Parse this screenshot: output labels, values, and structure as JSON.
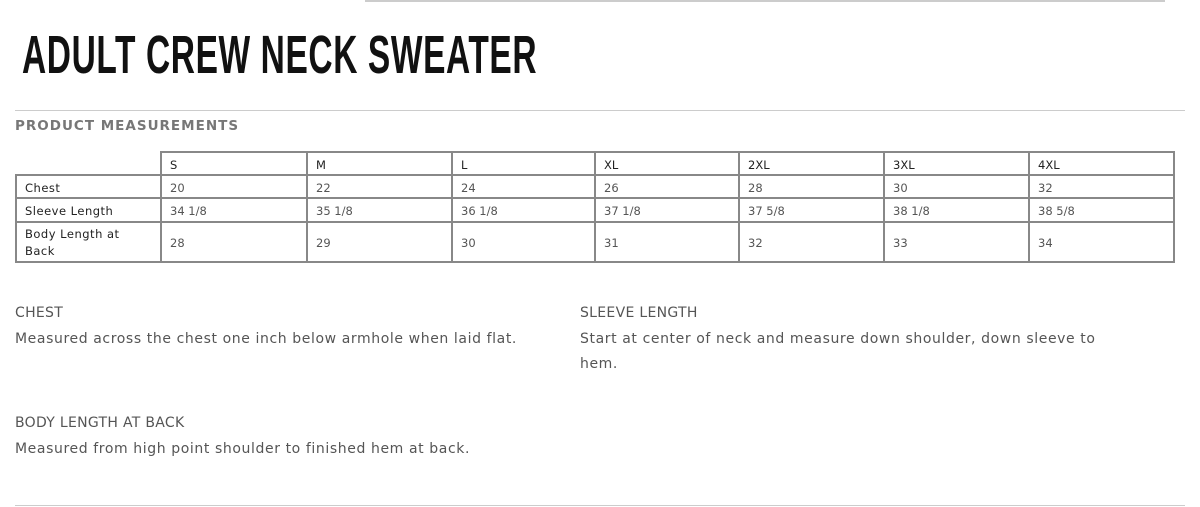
{
  "title": "ADULT CREW NECK SWEATER",
  "section_heading": "PRODUCT MEASUREMENTS",
  "table": {
    "sizes": [
      "S",
      "M",
      "L",
      "XL",
      "2XL",
      "3XL",
      "4XL"
    ],
    "rows": [
      {
        "label": "Chest",
        "values": [
          "20",
          "22",
          "24",
          "26",
          "28",
          "30",
          "32"
        ]
      },
      {
        "label": "Sleeve Length",
        "values": [
          "34 1/8",
          "35 1/8",
          "36 1/8",
          "37 1/8",
          "37 5/8",
          "38 1/8",
          "38 5/8"
        ]
      },
      {
        "label": "Body Length at Back",
        "values": [
          "28",
          "29",
          "30",
          "31",
          "32",
          "33",
          "34"
        ]
      }
    ]
  },
  "definitions": [
    {
      "term": "CHEST",
      "text": "Measured across the chest one inch below armhole when laid flat."
    },
    {
      "term": "SLEEVE LENGTH",
      "text": "Start at center of neck and measure down shoulder, down sleeve to hem."
    },
    {
      "term": "BODY LENGTH AT BACK",
      "text": "Measured from high point shoulder to finished hem at back."
    }
  ]
}
